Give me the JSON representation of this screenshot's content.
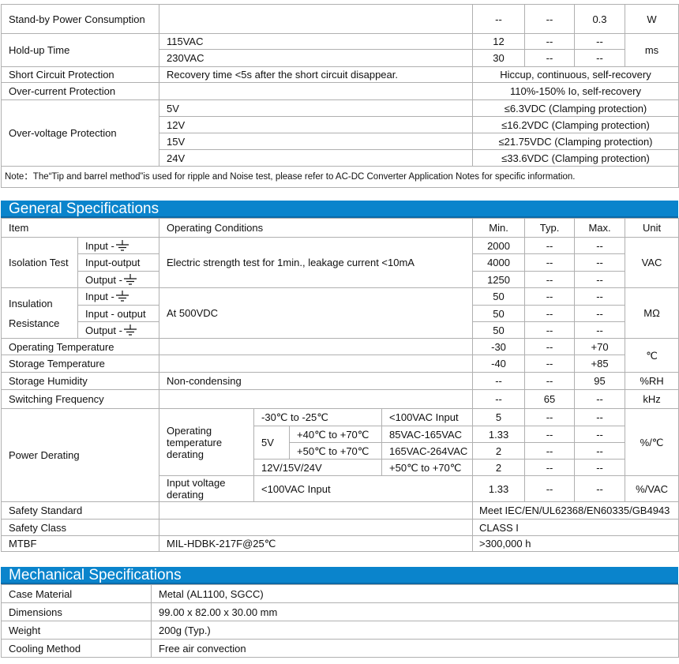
{
  "top": {
    "standby": {
      "item": "Stand-by Power Consumption",
      "min": "--",
      "typ": "--",
      "max": "0.3",
      "unit": "W"
    },
    "holdup": {
      "item": "Hold-up Time",
      "unit": "ms",
      "rows": [
        {
          "cond": "115VAC",
          "min": "12",
          "typ": "--",
          "max": "--"
        },
        {
          "cond": "230VAC",
          "min": "30",
          "typ": "--",
          "max": "--"
        }
      ]
    },
    "short": {
      "item": "Short Circuit Protection",
      "cond": "Recovery time <5s after the short circuit disappear.",
      "value": "Hiccup, continuous, self-recovery"
    },
    "overcurrent": {
      "item": "Over-current Protection",
      "value": "110%-150% Io, self-recovery"
    },
    "overvoltage": {
      "item": "Over-voltage Protection",
      "rows": [
        {
          "cond": "5V",
          "value": "≤6.3VDC (Clamping protection)"
        },
        {
          "cond": "12V",
          "value": "≤16.2VDC (Clamping protection)"
        },
        {
          "cond": "15V",
          "value": "≤21.75VDC (Clamping protection)"
        },
        {
          "cond": "24V",
          "value": "≤33.6VDC (Clamping protection)"
        }
      ]
    },
    "note": "Note：The“Tip and barrel method”is used for ripple and Noise test, please refer to AC-DC Converter Application Notes for specific information."
  },
  "general": {
    "title": "General Specifications",
    "headers": {
      "item": "Item",
      "cond": "Operating Conditions",
      "min": "Min.",
      "typ": "Typ.",
      "max": "Max.",
      "unit": "Unit"
    },
    "isolation": {
      "item": "Isolation Test",
      "cond": "Electric strength test for 1min., leakage current <10mA",
      "unit": "VAC",
      "rows": [
        {
          "sub": "Input -",
          "ground": true,
          "min": "2000",
          "typ": "--",
          "max": "--"
        },
        {
          "sub": "Input-output",
          "min": "4000",
          "typ": "--",
          "max": "--"
        },
        {
          "sub": "Output -",
          "ground": true,
          "min": "1250",
          "typ": "--",
          "max": "--"
        }
      ]
    },
    "insulation": {
      "item1": "Insulation",
      "item2": "Resistance",
      "cond": "At 500VDC",
      "unit": "MΩ",
      "rows": [
        {
          "sub": "Input -",
          "ground": true,
          "min": "50",
          "typ": "--",
          "max": "--"
        },
        {
          "sub": "Input - output",
          "min": "50",
          "typ": "--",
          "max": "--"
        },
        {
          "sub": "Output -",
          "ground": true,
          "min": "50",
          "typ": "--",
          "max": "--"
        }
      ]
    },
    "optemp": {
      "item": "Operating Temperature",
      "min": "-30",
      "typ": "--",
      "max": "+70"
    },
    "sttemp": {
      "item": "Storage Temperature",
      "min": "-40",
      "typ": "--",
      "max": "+85"
    },
    "temp_unit": "℃",
    "humidity": {
      "item": "Storage Humidity",
      "cond": "Non-condensing",
      "min": "--",
      "typ": "--",
      "max": "95",
      "unit": "%RH"
    },
    "switching": {
      "item": "Switching Frequency",
      "min": "--",
      "typ": "65",
      "max": "--",
      "unit": "kHz"
    },
    "derating": {
      "item": "Power Derating",
      "optemp_label": "Operating temperature derating",
      "unit": "%/℃",
      "r1": {
        "range": "-30℃ to -25℃",
        "input": "<100VAC Input",
        "min": "5",
        "typ": "--",
        "max": "--"
      },
      "v5": "5V",
      "r2": {
        "range": "+40℃ to +70℃",
        "input": "85VAC-165VAC",
        "min": "1.33",
        "typ": "--",
        "max": "--"
      },
      "r3": {
        "range": "+50℃ to +70℃",
        "input": "165VAC-264VAC",
        "min": "2",
        "typ": "--",
        "max": "--"
      },
      "r4": {
        "range": "12V/15V/24V",
        "input": "+50℃ to +70℃",
        "min": "2",
        "typ": "--",
        "max": "--"
      },
      "r5": {
        "label": "Input voltage derating",
        "cond": "<100VAC Input",
        "min": "1.33",
        "typ": "--",
        "max": "--",
        "unit": "%/VAC"
      }
    },
    "safety_standard": {
      "item": "Safety Standard",
      "value": "Meet IEC/EN/UL62368/EN60335/GB4943"
    },
    "safety_class": {
      "item": "Safety Class",
      "value": "CLASS I"
    },
    "mtbf": {
      "item": "MTBF",
      "cond": "MIL-HDBK-217F@25℃",
      "value": ">300,000 h"
    }
  },
  "mechanical": {
    "title": "Mechanical Specifications",
    "rows": [
      {
        "item": "Case Material",
        "value": "Metal (AL1100, SGCC)"
      },
      {
        "item": "Dimensions",
        "value": "99.00 x 82.00 x 30.00 mm"
      },
      {
        "item": "Weight",
        "value": "200g (Typ.)"
      },
      {
        "item": "Cooling Method",
        "value": "Free air convection"
      }
    ]
  },
  "colors": {
    "header_bar": "#0a84cc",
    "border": "#b0b0b0"
  }
}
